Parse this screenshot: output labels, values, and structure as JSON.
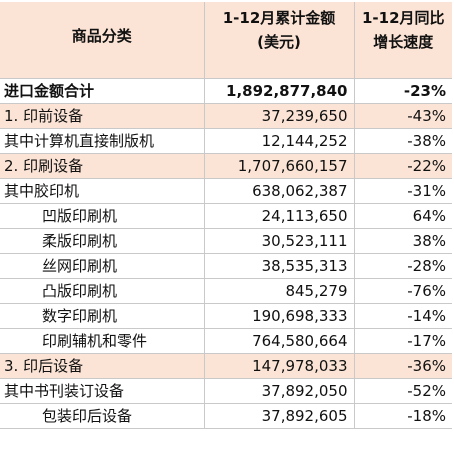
{
  "table": {
    "header": [
      "商品分类",
      "1-12月累计金额 (美元)",
      "1-12月同比 增长速度"
    ],
    "rows": [
      [
        "进口金额合计",
        "1,892,877,840",
        "-23%"
      ],
      [
        "1. 印前设备",
        "37,239,650",
        "-43%"
      ],
      [
        "其中计算机直接制版机",
        "12,144,252",
        "-38%"
      ],
      [
        "2. 印刷设备",
        "1,707,660,157",
        "-22%"
      ],
      [
        "其中胶印机",
        "638,062,387",
        "-31%"
      ],
      [
        "凹版印刷机",
        "24,113,650",
        "64%"
      ],
      [
        "柔版印刷机",
        "30,523,111",
        "38%"
      ],
      [
        "丝网印刷机",
        "38,535,313",
        "-28%"
      ],
      [
        "凸版印刷机",
        "845,279",
        "-76%"
      ],
      [
        "数字印刷机",
        "190,698,333",
        "-14%"
      ],
      [
        "印刷辅机和零件",
        "764,580,664",
        "-17%"
      ],
      [
        "3. 印后设备",
        "147,978,033",
        "-36%"
      ],
      [
        "其中书刊装订设备",
        "37,892,050",
        "-52%"
      ],
      [
        "包装印后设备",
        "37,892,605",
        "-18%"
      ]
    ]
  }
}
